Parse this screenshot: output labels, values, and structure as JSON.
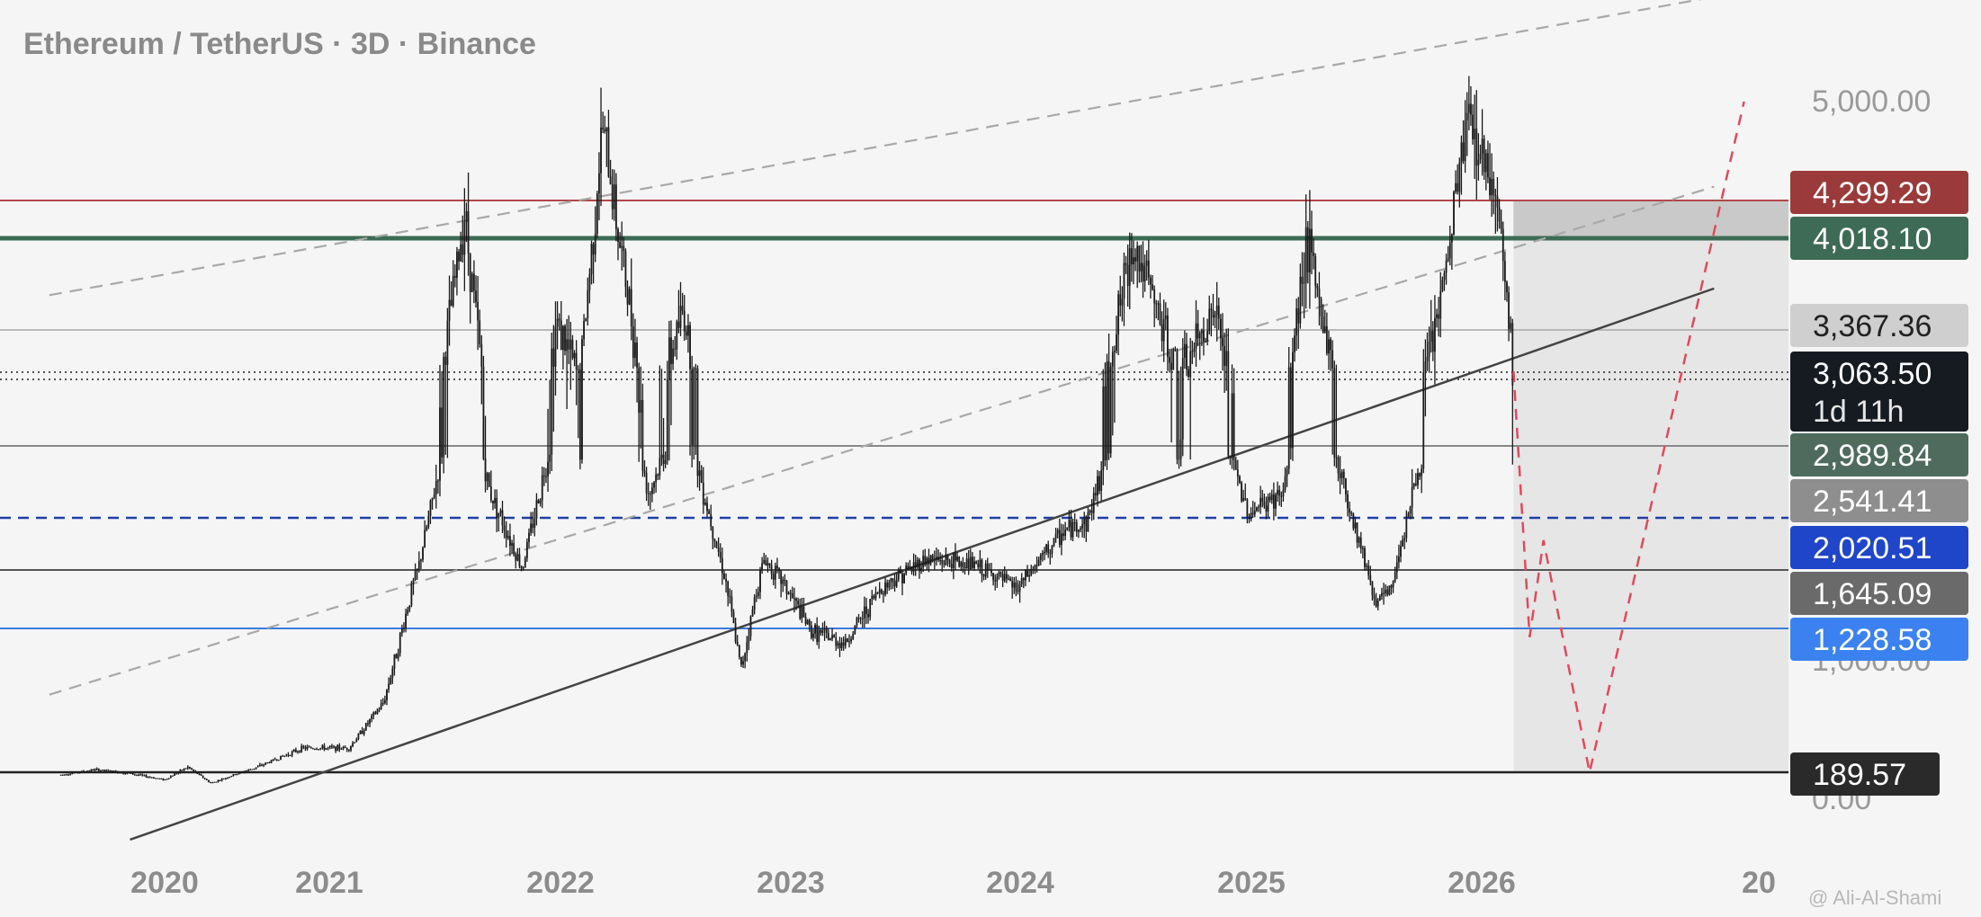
{
  "header": {
    "title": "Ethereum / TetherUS · 3D · Binance"
  },
  "watermark": {
    "text": "@ Ali-Al-Shami"
  },
  "colors": {
    "background": "#f5f5f5",
    "candles": "#1a1a1a",
    "projection": "#e04a5a",
    "channel": "#a8a8a8",
    "trend": "#444444",
    "zone": "#e6e6e6",
    "zone_top": "#c9c9c9"
  },
  "chart_data": {
    "type": "candlestick",
    "symbol": "Ethereum / TetherUS",
    "timeframe": "3D",
    "exchange": "Binance",
    "x_ticks": [
      "2020",
      "2021",
      "2022",
      "2023",
      "2024",
      "2025",
      "2026",
      "20"
    ],
    "y_ticks": [
      "5,000.00",
      "1,000.00",
      "0.00"
    ],
    "price_levels": [
      {
        "value": "4,299.29",
        "color": "#9b3a3a",
        "line_color": "#b34848",
        "style": "solid"
      },
      {
        "value": "4,018.10",
        "color": "#3d6b55",
        "line_color": "#3d6b55",
        "style": "solid"
      },
      {
        "value": "3,367.36",
        "color": "#cfcfcf",
        "line_color": "#b8b8b8",
        "style": "solid",
        "text_color": "#222222"
      },
      {
        "value": "3,063.50",
        "sub": "1d 11h",
        "color": "#161b22",
        "line_color": "#555555",
        "style": "dotted"
      },
      {
        "value": "2,989.84",
        "color": "#4e6b5e",
        "line_color": "#888888",
        "style": "solid"
      },
      {
        "value": "2,541.41",
        "color": "#8e8e8e",
        "line_color": "#1e3fa8",
        "style": "dashed"
      },
      {
        "value": "2,020.51",
        "color": "#1f46c8",
        "line_color": "#555555",
        "style": "solid"
      },
      {
        "value": "1,645.09",
        "color": "#6a6a6a",
        "line_color": "#3b7be0",
        "style": "solid"
      },
      {
        "value": "1,228.58",
        "color": "#3b82f0",
        "line_color": "#3b82f0",
        "style": "solid"
      },
      {
        "value": "189.57",
        "color": "#2a2a2a",
        "line_color": "#222222",
        "style": "solid"
      }
    ],
    "price_path": [
      {
        "t": 2019.55,
        "p": 170
      },
      {
        "t": 2019.7,
        "p": 210
      },
      {
        "t": 2019.85,
        "p": 180
      },
      {
        "t": 2020.0,
        "p": 135
      },
      {
        "t": 2020.1,
        "p": 230
      },
      {
        "t": 2020.2,
        "p": 110
      },
      {
        "t": 2020.4,
        "p": 230
      },
      {
        "t": 2020.6,
        "p": 380
      },
      {
        "t": 2020.8,
        "p": 380
      },
      {
        "t": 2020.95,
        "p": 740
      },
      {
        "t": 2021.1,
        "p": 1800
      },
      {
        "t": 2021.3,
        "p": 4200
      },
      {
        "t": 2021.4,
        "p": 2700
      },
      {
        "t": 2021.55,
        "p": 1800
      },
      {
        "t": 2021.7,
        "p": 3400
      },
      {
        "t": 2021.8,
        "p": 3000
      },
      {
        "t": 2021.9,
        "p": 4800
      },
      {
        "t": 2022.0,
        "p": 3700
      },
      {
        "t": 2022.1,
        "p": 2600
      },
      {
        "t": 2022.25,
        "p": 3500
      },
      {
        "t": 2022.4,
        "p": 2000
      },
      {
        "t": 2022.5,
        "p": 1000
      },
      {
        "t": 2022.6,
        "p": 1900
      },
      {
        "t": 2022.8,
        "p": 1300
      },
      {
        "t": 2022.95,
        "p": 1200
      },
      {
        "t": 2023.1,
        "p": 1600
      },
      {
        "t": 2023.3,
        "p": 1900
      },
      {
        "t": 2023.5,
        "p": 1850
      },
      {
        "t": 2023.7,
        "p": 1600
      },
      {
        "t": 2023.9,
        "p": 2200
      },
      {
        "t": 2024.0,
        "p": 2300
      },
      {
        "t": 2024.2,
        "p": 4000
      },
      {
        "t": 2024.4,
        "p": 3000
      },
      {
        "t": 2024.55,
        "p": 3500
      },
      {
        "t": 2024.7,
        "p": 2400
      },
      {
        "t": 2024.85,
        "p": 2600
      },
      {
        "t": 2024.95,
        "p": 4000
      },
      {
        "t": 2025.1,
        "p": 2800
      },
      {
        "t": 2025.25,
        "p": 1500
      },
      {
        "t": 2025.32,
        "p": 1600
      },
      {
        "t": 2025.4,
        "p": 2500
      },
      {
        "t": 2025.55,
        "p": 3700
      },
      {
        "t": 2025.65,
        "p": 4900
      },
      {
        "t": 2025.78,
        "p": 4300
      },
      {
        "t": 2025.85,
        "p": 3063.5
      }
    ],
    "projection_path": [
      {
        "t": 2025.85,
        "p": 3063.5
      },
      {
        "t": 2025.92,
        "p": 1250
      },
      {
        "t": 2025.98,
        "p": 2100
      },
      {
        "t": 2026.18,
        "p": 189.57
      },
      {
        "t": 2026.85,
        "p": 5000
      }
    ],
    "trend_lines": [
      {
        "name": "support",
        "from": {
          "t": 2019.85,
          "p": -300
        },
        "to": {
          "t": 2026.72,
          "p": 3650
        }
      },
      {
        "name": "channel-lower",
        "from": {
          "t": 2019.5,
          "p": 800
        },
        "to": {
          "t": 2026.72,
          "p": 4350
        }
      },
      {
        "name": "channel-upper",
        "from": {
          "t": 2019.5,
          "p": 3600
        },
        "to": {
          "t": 2026.72,
          "p": 5800
        }
      }
    ],
    "projection_zone": {
      "t_start": 2025.85,
      "p_top": 4299.29,
      "p_bottom": 189.57
    }
  }
}
